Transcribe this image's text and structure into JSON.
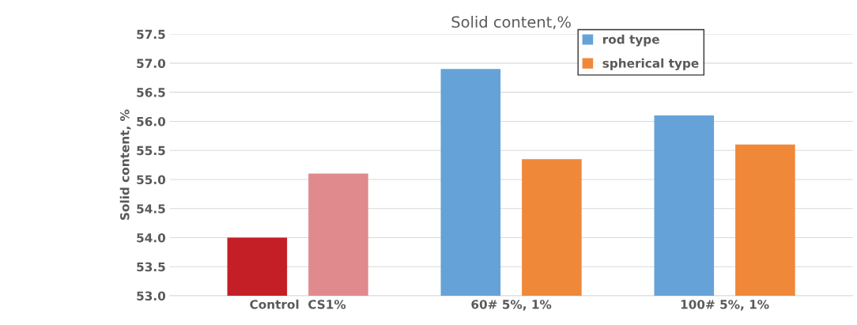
{
  "chart_data": {
    "type": "bar",
    "title": "Solid content,%",
    "ylabel": "Solid content, %",
    "categories": [
      "Control  CS1%",
      "60# 5%, 1%",
      "100# 5%, 1%"
    ],
    "series": [
      {
        "name": "rod type",
        "color": "#65a2d7",
        "colors": [
          "#c41f26",
          "#65a2d7",
          "#65a2d7"
        ],
        "values": [
          54.0,
          56.9,
          56.1
        ]
      },
      {
        "name": "spherical type",
        "color": "#f0883a",
        "colors": [
          "#e08a8e",
          "#f0883a",
          "#f0883a"
        ],
        "values": [
          55.1,
          55.35,
          55.6
        ]
      }
    ],
    "ylim": [
      53.0,
      57.5
    ],
    "yticks": [
      {
        "value": 53.0,
        "label": "53.0"
      },
      {
        "value": 53.5,
        "label": "53.5"
      },
      {
        "value": 54.0,
        "label": "54.0"
      },
      {
        "value": 54.5,
        "label": "54.5"
      },
      {
        "value": 55.0,
        "label": "55.0"
      },
      {
        "value": 55.5,
        "label": "55.5"
      },
      {
        "value": 56.0,
        "label": "56.0"
      },
      {
        "value": 56.5,
        "label": "56.5"
      },
      {
        "value": 57.0,
        "label": "57.0"
      },
      {
        "value": 57.5,
        "label": "57.5"
      }
    ],
    "grid": "y",
    "legend": "top right"
  }
}
